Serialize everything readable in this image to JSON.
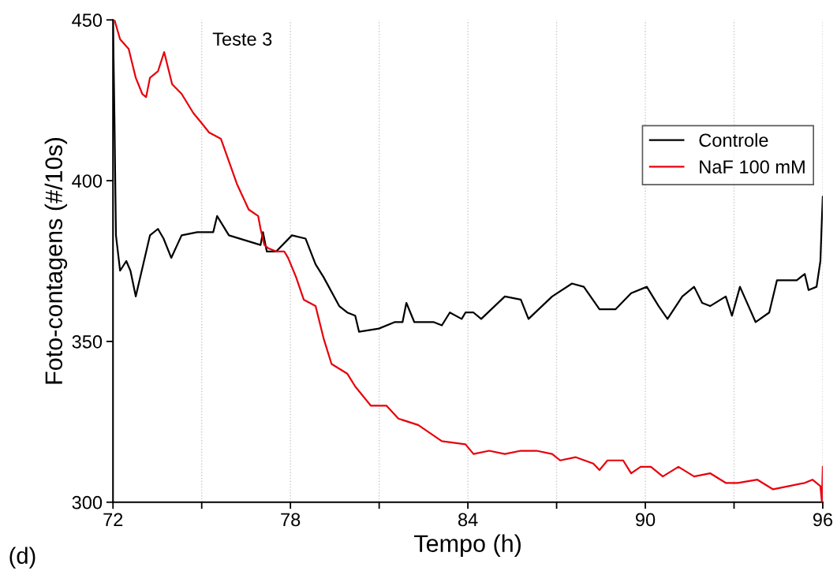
{
  "chart_data": {
    "type": "line",
    "xlabel": "Tempo (h)",
    "ylabel": "Foto-contagens (#/10s)",
    "annotations": [
      "Teste 3",
      "(d)"
    ],
    "xlim": [
      72,
      96
    ],
    "ylim": [
      300,
      450
    ],
    "xticks": [
      72,
      {
        "value": 75,
        "label": null
      },
      78,
      {
        "value": 81,
        "label": null
      },
      84,
      {
        "value": 87,
        "label": null
      },
      90,
      {
        "value": 93,
        "label": null
      },
      96
    ],
    "yticks": [
      300,
      350,
      400,
      450
    ],
    "grid": "x",
    "legend": "top right",
    "line_style": "solid",
    "marker": "none",
    "series": [
      {
        "name": "Controle",
        "color": "#000000",
        "x": [
          72.0,
          72.05,
          72.1,
          72.24,
          72.45,
          72.59,
          72.77,
          73.25,
          73.52,
          73.71,
          73.97,
          74.32,
          74.85,
          75.39,
          75.52,
          75.92,
          76.99,
          77.07,
          77.2,
          77.52,
          78.05,
          78.51,
          78.85,
          79.12,
          79.65,
          79.92,
          80.19,
          80.32,
          80.99,
          81.52,
          81.79,
          81.92,
          82.19,
          82.85,
          83.12,
          83.39,
          83.79,
          83.92,
          84.19,
          84.45,
          85.25,
          85.79,
          86.05,
          86.85,
          87.52,
          87.92,
          88.45,
          88.99,
          89.52,
          90.05,
          90.45,
          90.75,
          91.25,
          91.65,
          91.92,
          92.19,
          92.72,
          92.93,
          93.2,
          93.73,
          94.19,
          94.45,
          95.12,
          95.39,
          95.52,
          95.79,
          95.92,
          95.97,
          96.0
        ],
        "values": [
          450,
          419,
          383,
          372,
          375,
          372,
          364,
          383,
          385,
          382,
          376,
          383,
          384,
          384,
          389,
          383,
          380,
          384,
          378,
          378,
          383,
          382,
          374,
          370,
          361,
          359,
          358,
          353,
          354,
          356,
          356,
          362,
          356,
          356,
          355,
          359,
          357,
          359,
          359,
          357,
          364,
          363,
          357,
          364,
          368,
          367,
          360,
          360,
          365,
          367,
          361,
          357,
          364,
          367,
          362,
          361,
          364,
          358,
          367,
          356,
          359,
          369,
          369,
          371,
          366,
          367,
          375,
          388,
          395
        ]
      },
      {
        "name": "NaF 100 mM",
        "color": "#e8000b",
        "x": [
          72.05,
          72.24,
          72.53,
          72.77,
          72.99,
          73.12,
          73.25,
          73.52,
          73.73,
          74.0,
          74.32,
          74.72,
          74.99,
          75.25,
          75.65,
          76.19,
          76.59,
          76.91,
          76.99,
          77.12,
          77.25,
          77.52,
          77.79,
          77.92,
          78.19,
          78.45,
          78.85,
          79.12,
          79.39,
          79.92,
          80.19,
          80.72,
          81.25,
          81.65,
          82.32,
          83.12,
          83.92,
          84.19,
          84.72,
          85.25,
          85.79,
          86.32,
          86.85,
          87.12,
          87.65,
          88.24,
          88.45,
          88.72,
          89.25,
          89.52,
          89.84,
          90.19,
          90.59,
          91.12,
          91.65,
          92.19,
          92.72,
          93.12,
          93.79,
          94.32,
          94.85,
          95.39,
          95.65,
          95.92,
          95.97,
          96.0
        ],
        "values": [
          450,
          444,
          441,
          432,
          427,
          426,
          432,
          434,
          440,
          430,
          427,
          421,
          418,
          415,
          413,
          399,
          391,
          389,
          385,
          380,
          379,
          378,
          378,
          376,
          370,
          363,
          361,
          351,
          343,
          340,
          336,
          330,
          330,
          326,
          324,
          319,
          318,
          315,
          316,
          315,
          316,
          316,
          315,
          313,
          314,
          312,
          310,
          313,
          313,
          309,
          311,
          311,
          308,
          311,
          308,
          309,
          306,
          306,
          307,
          304,
          305,
          306,
          307,
          305,
          300,
          311
        ]
      }
    ]
  }
}
